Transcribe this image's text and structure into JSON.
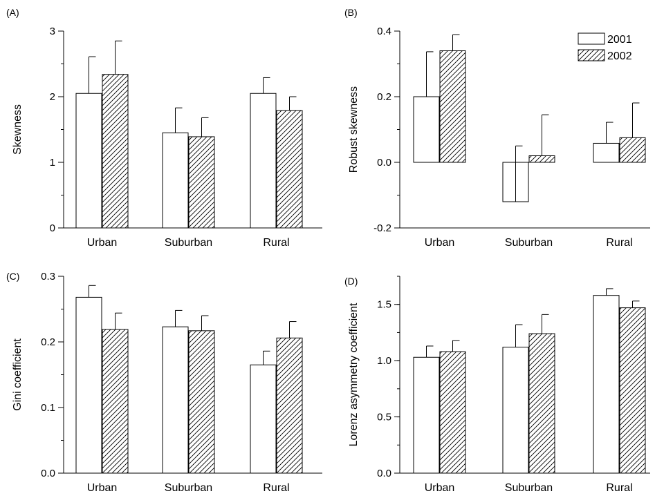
{
  "colors": {
    "ink": "#000000",
    "background": "#ffffff",
    "bar_2001_fill": "#ffffff"
  },
  "legend": {
    "position": "top-right of panel B",
    "entries": [
      {
        "label": "2001",
        "pattern": "open"
      },
      {
        "label": "2002",
        "pattern": "hatched"
      }
    ]
  },
  "chart_data": [
    {
      "panel_label": "(A)",
      "type": "bar",
      "ylabel": "Skewness",
      "categories": [
        "Urban",
        "Suburban",
        "Rural"
      ],
      "ylim": [
        0,
        3
      ],
      "yticks": [
        0,
        1,
        2,
        3
      ],
      "ytick_labels": [
        "0",
        "1",
        "2",
        "3"
      ],
      "minor_step": 0.5,
      "series": [
        {
          "name": "2001",
          "values": [
            2.05,
            1.45,
            2.05
          ],
          "errors": [
            0.56,
            0.38,
            0.24
          ]
        },
        {
          "name": "2002",
          "values": [
            2.34,
            1.39,
            1.79
          ],
          "errors": [
            0.51,
            0.29,
            0.21
          ]
        }
      ]
    },
    {
      "panel_label": "(B)",
      "type": "bar",
      "ylabel": "Robust skewness",
      "categories": [
        "Urban",
        "Suburban",
        "Rural"
      ],
      "ylim": [
        -0.2,
        0.4
      ],
      "yticks": [
        -0.2,
        0.0,
        0.2,
        0.4
      ],
      "ytick_labels": [
        "-0.2",
        "0.0",
        "0.2",
        "0.4"
      ],
      "minor_step": 0.1,
      "show_legend": true,
      "series": [
        {
          "name": "2001",
          "values": [
            0.2,
            -0.12,
            0.058
          ],
          "errors": [
            0.137,
            0.17,
            0.064
          ]
        },
        {
          "name": "2002",
          "values": [
            0.34,
            0.02,
            0.075
          ],
          "errors": [
            0.049,
            0.125,
            0.106
          ]
        }
      ]
    },
    {
      "panel_label": "(C)",
      "type": "bar",
      "ylabel": "Gini coefficient",
      "categories": [
        "Urban",
        "Suburban",
        "Rural"
      ],
      "ylim": [
        0,
        0.3
      ],
      "yticks": [
        0.0,
        0.1,
        0.2,
        0.3
      ],
      "ytick_labels": [
        "0.0",
        "0.1",
        "0.2",
        "0.3"
      ],
      "minor_step": 0.05,
      "series": [
        {
          "name": "2001",
          "values": [
            0.268,
            0.223,
            0.165
          ],
          "errors": [
            0.018,
            0.025,
            0.021
          ]
        },
        {
          "name": "2002",
          "values": [
            0.219,
            0.217,
            0.206
          ],
          "errors": [
            0.025,
            0.023,
            0.025
          ]
        }
      ]
    },
    {
      "panel_label": "(D)",
      "type": "bar",
      "ylabel": "Lorenz asymmetry coefficient",
      "categories": [
        "Urban",
        "Suburban",
        "Rural"
      ],
      "ylim": [
        0,
        1.75
      ],
      "yticks": [
        0.0,
        0.5,
        1.0,
        1.5
      ],
      "ytick_labels": [
        "0.0",
        "0.5",
        "1.0",
        "1.5"
      ],
      "minor_step": 0.25,
      "series": [
        {
          "name": "2001",
          "values": [
            1.03,
            1.12,
            1.58
          ],
          "errors": [
            0.1,
            0.2,
            0.06
          ]
        },
        {
          "name": "2002",
          "values": [
            1.08,
            1.24,
            1.47
          ],
          "errors": [
            0.1,
            0.17,
            0.06
          ]
        }
      ]
    }
  ]
}
